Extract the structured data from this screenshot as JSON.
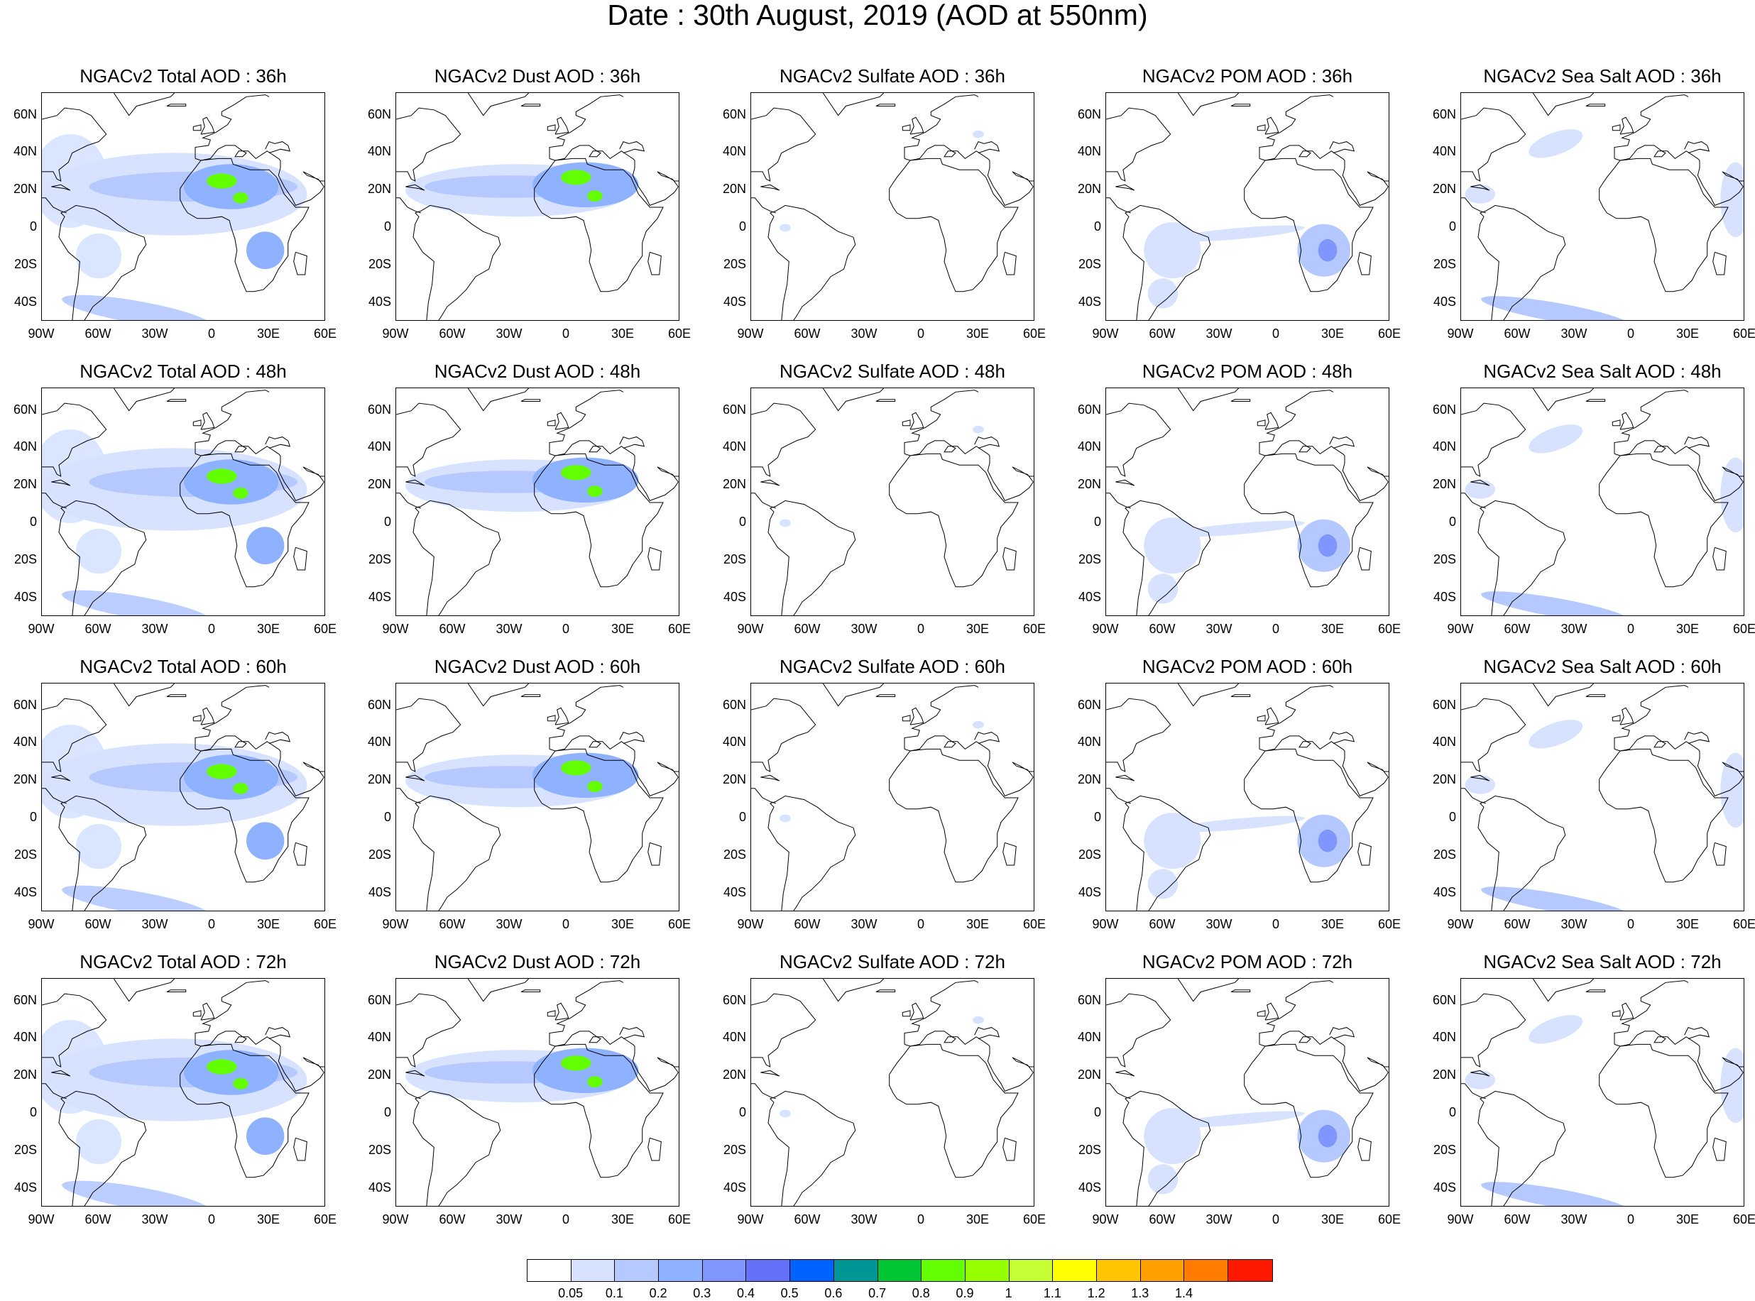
{
  "title": "Date : 30th August, 2019 (AOD at 550nm)",
  "rows": [
    {
      "hour": "36h",
      "panels": [
        {
          "title": "NGACv2 Total AOD : 36h",
          "field": "total"
        },
        {
          "title": "NGACv2 Dust AOD : 36h",
          "field": "dust"
        },
        {
          "title": "NGACv2 Sulfate AOD : 36h",
          "field": "sulfate"
        },
        {
          "title": "NGACv2 POM AOD : 36h",
          "field": "pom"
        },
        {
          "title": "NGACv2 Sea Salt AOD : 36h",
          "field": "seasalt"
        }
      ]
    },
    {
      "hour": "48h",
      "panels": [
        {
          "title": "NGACv2 Total AOD : 48h",
          "field": "total"
        },
        {
          "title": "NGACv2 Dust AOD : 48h",
          "field": "dust"
        },
        {
          "title": "NGACv2 Sulfate AOD : 48h",
          "field": "sulfate"
        },
        {
          "title": "NGACv2 POM AOD : 48h",
          "field": "pom"
        },
        {
          "title": "NGACv2 Sea Salt AOD : 48h",
          "field": "seasalt"
        }
      ]
    },
    {
      "hour": "60h",
      "panels": [
        {
          "title": "NGACv2 Total AOD : 60h",
          "field": "total"
        },
        {
          "title": "NGACv2 Dust AOD : 60h",
          "field": "dust"
        },
        {
          "title": "NGACv2 Sulfate AOD : 60h",
          "field": "sulfate"
        },
        {
          "title": "NGACv2 POM AOD : 60h",
          "field": "pom"
        },
        {
          "title": "NGACv2 Sea Salt AOD : 60h",
          "field": "seasalt"
        }
      ]
    },
    {
      "hour": "72h",
      "panels": [
        {
          "title": "NGACv2 Total AOD : 72h",
          "field": "total"
        },
        {
          "title": "NGACv2 Dust AOD : 72h",
          "field": "dust"
        },
        {
          "title": "NGACv2 Sulfate AOD : 72h",
          "field": "sulfate"
        },
        {
          "title": "NGACv2 POM AOD : 72h",
          "field": "pom"
        },
        {
          "title": "NGACv2 Sea Salt  AOD : 72h",
          "field": "seasalt"
        }
      ]
    }
  ],
  "axes": {
    "lat_labels": [
      "60N",
      "40N",
      "20N",
      "0",
      "20S",
      "40S"
    ],
    "lon_labels": [
      "90W",
      "60W",
      "30W",
      "0",
      "30E",
      "60E"
    ]
  },
  "colorbar": {
    "labels": [
      "0.05",
      "0.1",
      "0.2",
      "0.3",
      "0.4",
      "0.5",
      "0.6",
      "0.7",
      "0.8",
      "0.9",
      "1",
      "1.1",
      "1.2",
      "1.3",
      "1.4"
    ],
    "colors": [
      "#ffffff",
      "#d6e2ff",
      "#b5c9ff",
      "#8eb2ff",
      "#7f96ff",
      "#6370f8",
      "#0063ff",
      "#009696",
      "#00c633",
      "#63ff00",
      "#96ff00",
      "#c6ff33",
      "#ffff00",
      "#ffc600",
      "#ffa000",
      "#ff7c00",
      "#ff1900"
    ]
  }
}
